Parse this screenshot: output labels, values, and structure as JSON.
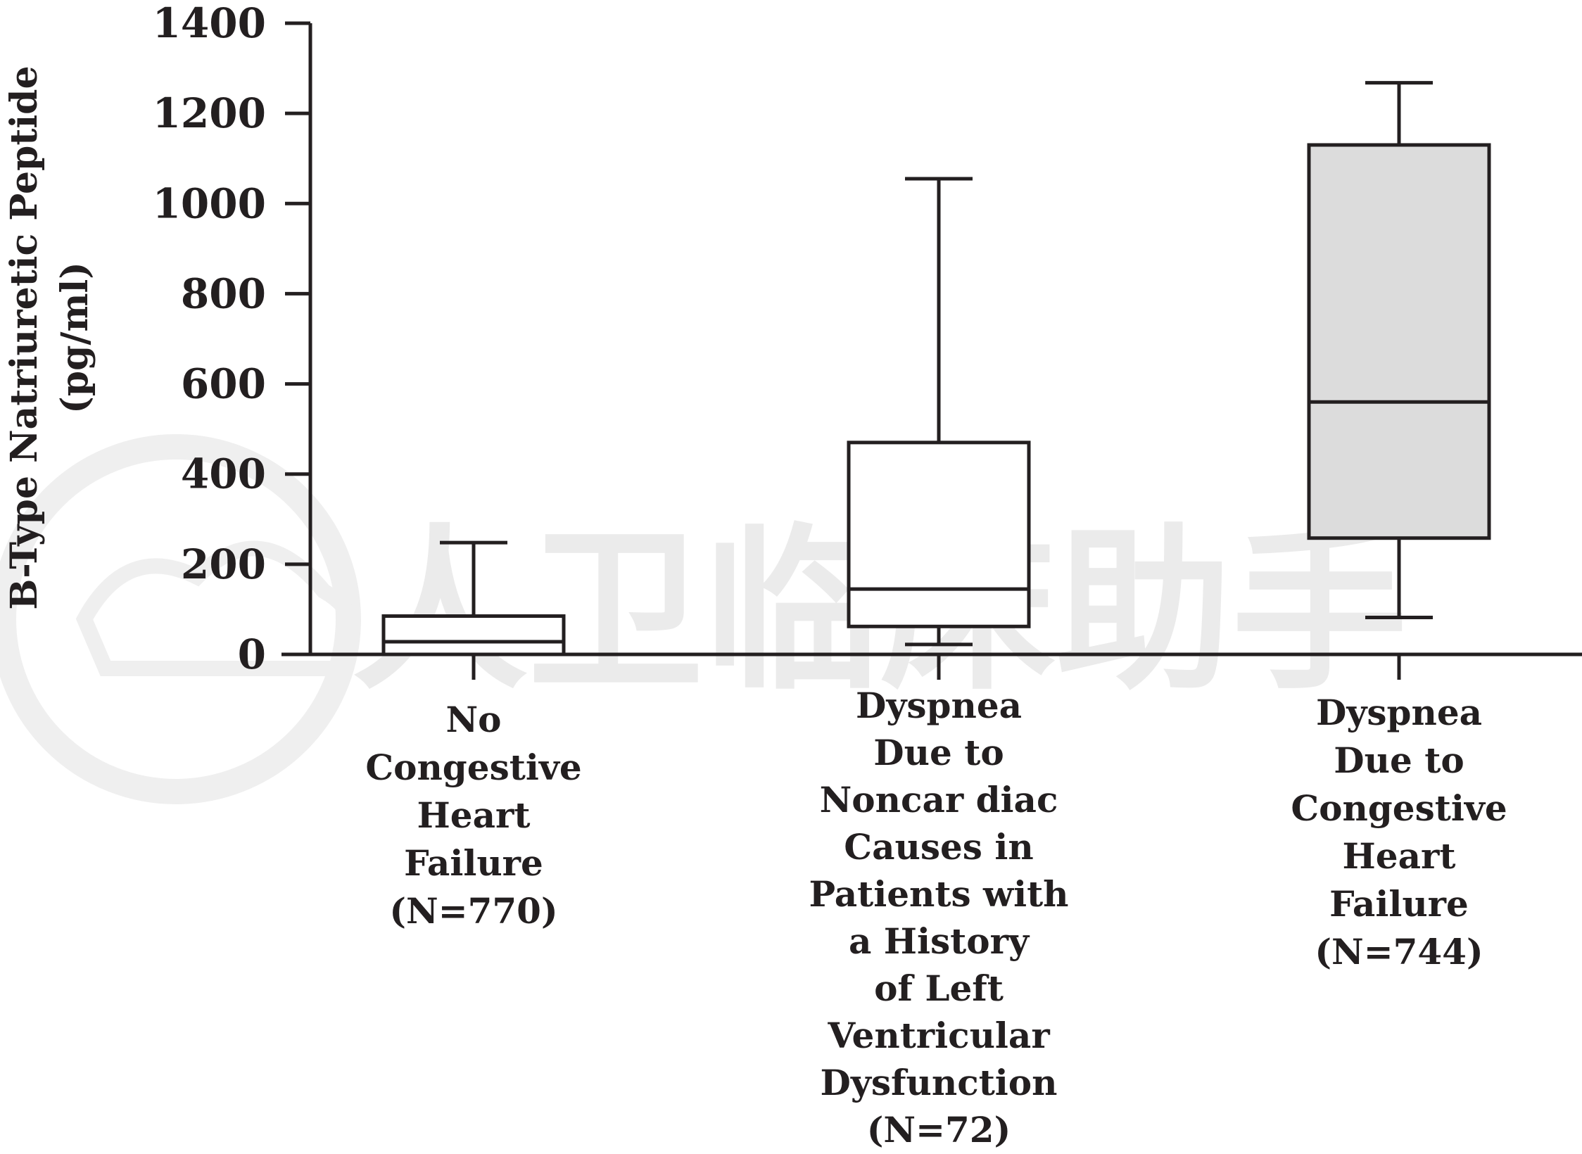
{
  "watermark": "人卫临床助手",
  "chart_data": {
    "type": "box",
    "ylabel_lines": [
      "B-Type Natriuretic Peptide",
      "(pg/ml)"
    ],
    "ylim": [
      0,
      1400
    ],
    "yticks": [
      0,
      200,
      400,
      600,
      800,
      1000,
      1200,
      1400
    ],
    "grid": false,
    "legend": "none",
    "boxes": [
      {
        "label_lines": [
          "No",
          "Congestive",
          "Heart",
          "Failure",
          "(N=770)"
        ],
        "whisker_low": 0,
        "q1": 0,
        "median": 28,
        "q3": 85,
        "whisker_high": 248,
        "fill": "#ffffff"
      },
      {
        "label_lines": [
          "Dyspnea",
          "Due to",
          "Noncar diac",
          "Causes in",
          "Patients with",
          "a History",
          "of Left",
          "Ventricular",
          "Dysfunction",
          "(N=72)"
        ],
        "whisker_low": 22,
        "q1": 62,
        "median": 145,
        "q3": 470,
        "whisker_high": 1055,
        "fill": "#ffffff"
      },
      {
        "label_lines": [
          "Dyspnea",
          "Due to",
          "Congestive",
          "Heart",
          "Failure",
          "(N=744)"
        ],
        "whisker_low": 82,
        "q1": 258,
        "median": 560,
        "q3": 1130,
        "whisker_high": 1268,
        "fill": "#dcdcdc"
      }
    ],
    "colors": {
      "ink": "#231f20",
      "watermark": "#ebebeb"
    }
  }
}
